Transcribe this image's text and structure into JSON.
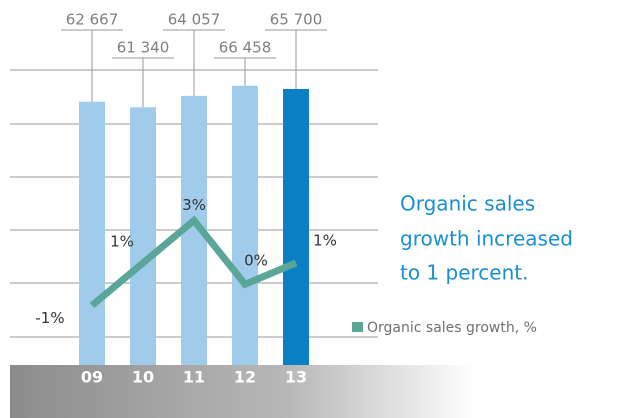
{
  "chart_data": {
    "type": "bar",
    "categories": [
      "09",
      "10",
      "11",
      "12",
      "13"
    ],
    "ylim": [
      0,
      84500
    ],
    "y2lim": [
      -3.8,
      12.9
    ],
    "series": [
      {
        "type": "bar",
        "colors": [
          "#a0cbea",
          "#a0cbea",
          "#a0cbea",
          "#a0cbea",
          "#0a7fc4"
        ],
        "values": [
          62667,
          61340,
          64057,
          66458,
          65700
        ],
        "value_labels": [
          "62 667",
          "61 340",
          "64 057",
          "66 458",
          "65 700"
        ]
      },
      {
        "type": "line",
        "axis": "y2",
        "name": "Organic sales growth, %",
        "color": "#5aa79a",
        "values": [
          -1,
          1,
          3,
          0,
          1
        ],
        "value_labels": [
          "-1%",
          "1%",
          "3%",
          "0%",
          "1%"
        ]
      }
    ],
    "annotation": [
      "Organic sales",
      "growth increased",
      "to 1 percent."
    ],
    "legend": "bottom-right"
  }
}
